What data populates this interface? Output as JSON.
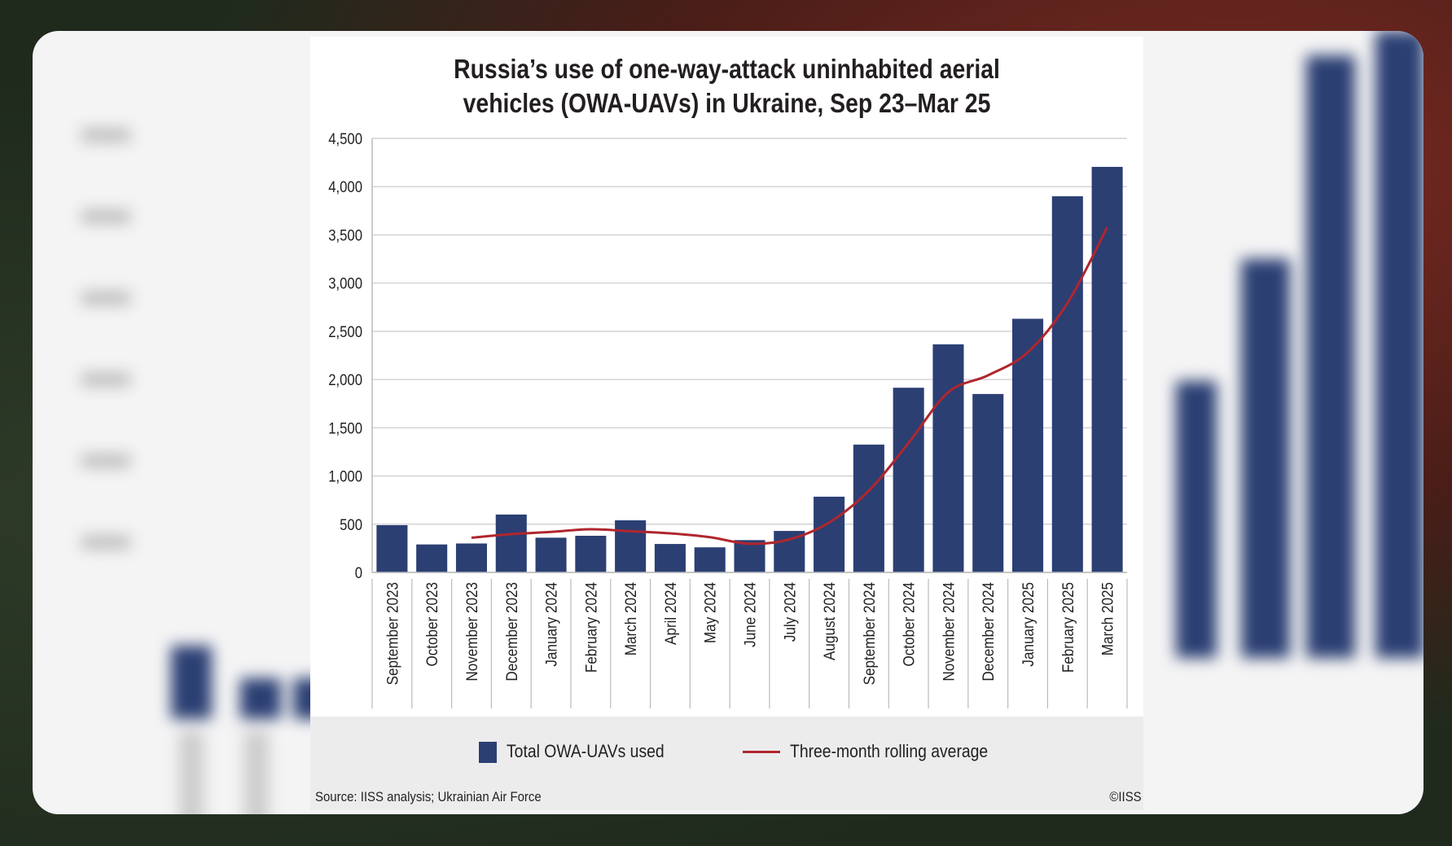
{
  "colors": {
    "bar": "#2b3f73",
    "line": "#b0262e",
    "grid": "#d4d4d6",
    "text": "#231f20"
  },
  "chart_data": {
    "type": "bar",
    "title": "Russia’s use of one-way-attack uninhabited aerial vehicles (OWA-UAVs) in Ukraine, Sep 23–Mar 25",
    "title_lines": [
      "Russia’s use of one-way-attack uninhabited aerial",
      "vehicles (OWA-UAVs) in Ukraine, Sep 23–Mar 25"
    ],
    "xlabel": "",
    "ylabel": "",
    "ylim": [
      0,
      4500
    ],
    "yticks": [
      0,
      500,
      1000,
      1500,
      2000,
      2500,
      3000,
      3500,
      4000,
      4500
    ],
    "ytick_labels": [
      "0",
      "500",
      "1,000",
      "1,500",
      "2,000",
      "2,500",
      "3,000",
      "3,500",
      "4,000",
      "4,500"
    ],
    "grid": true,
    "legend_position": "bottom",
    "categories": [
      "September 2023",
      "October 2023",
      "November 2023",
      "December 2023",
      "January 2024",
      "February 2024",
      "March 2024",
      "April 2024",
      "May 2024",
      "June 2024",
      "July 2024",
      "August 2024",
      "September 2024",
      "October 2024",
      "November 2024",
      "December 2024",
      "January 2025",
      "February 2025",
      "March 2025"
    ],
    "series": [
      {
        "name": "Total OWA-UAVs used",
        "type": "bar",
        "values": [
          490,
          290,
          300,
          600,
          360,
          380,
          540,
          295,
          260,
          335,
          430,
          785,
          1325,
          1915,
          2365,
          1850,
          2630,
          3900,
          4205
        ]
      },
      {
        "name": "Three-month rolling average",
        "type": "line",
        "values": [
          null,
          null,
          360,
          397,
          420,
          447,
          427,
          405,
          365,
          297,
          342,
          517,
          847,
          1342,
          1868,
          2043,
          2282,
          2793,
          3578
        ]
      }
    ],
    "source": "Source: IISS analysis; Ukrainian Air Force",
    "copyright": "©IISS"
  }
}
